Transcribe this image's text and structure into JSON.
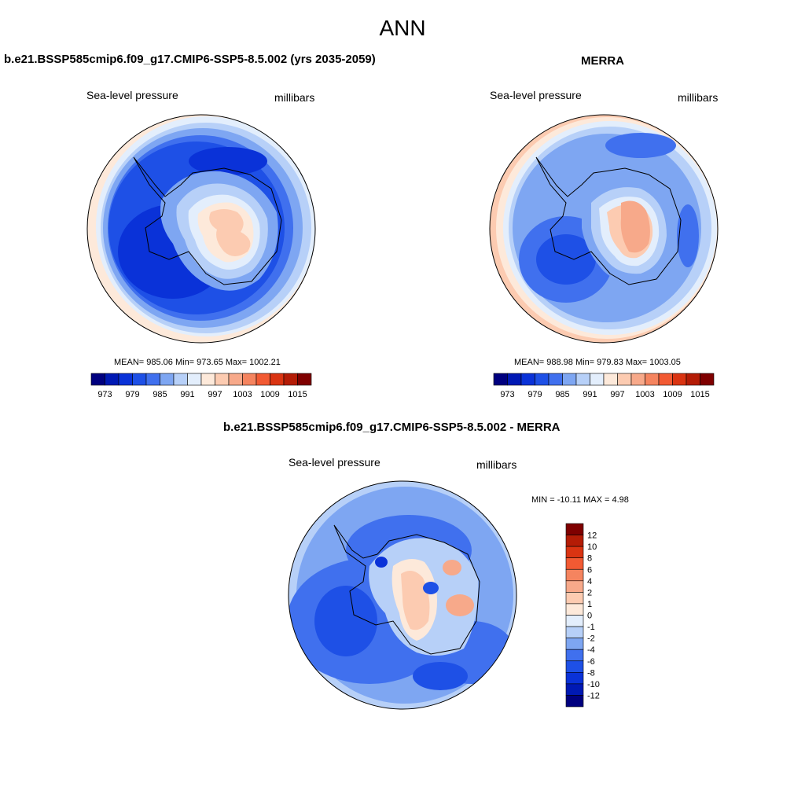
{
  "figure": {
    "title": "ANN"
  },
  "panels": [
    {
      "id": "model",
      "title": "b.e21.BSSP585cmip6.f09_g17.CMIP6-SSP5-8.5.002 (yrs 2035-2059)",
      "left_label": "Sea-level pressure",
      "right_label": "millibars",
      "stats": "MEAN= 985.06  Min= 973.65  Max= 1002.21"
    },
    {
      "id": "obs",
      "title": "MERRA",
      "left_label": "Sea-level pressure",
      "right_label": "millibars",
      "stats": "MEAN= 988.98  Min= 979.83  Max= 1003.05"
    },
    {
      "id": "diff",
      "title": "b.e21.BSSP585cmip6.f09_g17.CMIP6-SSP5-8.5.002 - MERRA",
      "left_label": "Sea-level pressure",
      "right_label": "millibars",
      "stats": "MIN = -10.11 MAX =   4.98"
    }
  ],
  "chart_data": [
    {
      "type": "heatmap",
      "projection": "polar-stereographic (south pole)",
      "variable": "Sea-level pressure",
      "units": "millibars",
      "mean": 985.06,
      "min": 973.65,
      "max": 1002.21,
      "colorbar": {
        "orientation": "horizontal",
        "tick_labels": [
          "973",
          "979",
          "985",
          "991",
          "997",
          "1003",
          "1009",
          "1015"
        ],
        "colors": [
          "#00007f",
          "#0019b4",
          "#0a32d8",
          "#1e50e6",
          "#4070ee",
          "#7ea6f2",
          "#b7d0f8",
          "#e3eefc",
          "#fde9da",
          "#fccbb1",
          "#f7a98a",
          "#f5845f",
          "#f25a33",
          "#da3412",
          "#b41c06",
          "#7f0000"
        ]
      }
    },
    {
      "type": "heatmap",
      "projection": "polar-stereographic (south pole)",
      "variable": "Sea-level pressure",
      "units": "millibars",
      "mean": 988.98,
      "min": 979.83,
      "max": 1003.05,
      "colorbar": {
        "orientation": "horizontal",
        "tick_labels": [
          "973",
          "979",
          "985",
          "991",
          "997",
          "1003",
          "1009",
          "1015"
        ],
        "colors": [
          "#00007f",
          "#0019b4",
          "#0a32d8",
          "#1e50e6",
          "#4070ee",
          "#7ea6f2",
          "#b7d0f8",
          "#e3eefc",
          "#fde9da",
          "#fccbb1",
          "#f7a98a",
          "#f5845f",
          "#f25a33",
          "#da3412",
          "#b41c06",
          "#7f0000"
        ]
      }
    },
    {
      "type": "heatmap",
      "projection": "polar-stereographic (south pole)",
      "variable": "Sea-level pressure",
      "units": "millibars",
      "min": -10.11,
      "max": 4.98,
      "colorbar": {
        "orientation": "vertical",
        "tick_labels": [
          "12",
          "10",
          "8",
          "6",
          "4",
          "2",
          "1",
          "0",
          "-1",
          "-2",
          "-4",
          "-6",
          "-8",
          "-10",
          "-12"
        ],
        "colors": [
          "#7f0000",
          "#b41c06",
          "#da3412",
          "#f25a33",
          "#f5845f",
          "#f7a98a",
          "#fccbb1",
          "#fde9da",
          "#e3eefc",
          "#b7d0f8",
          "#7ea6f2",
          "#4070ee",
          "#1e50e6",
          "#0a32d8",
          "#0019b4",
          "#00007f"
        ]
      }
    }
  ]
}
